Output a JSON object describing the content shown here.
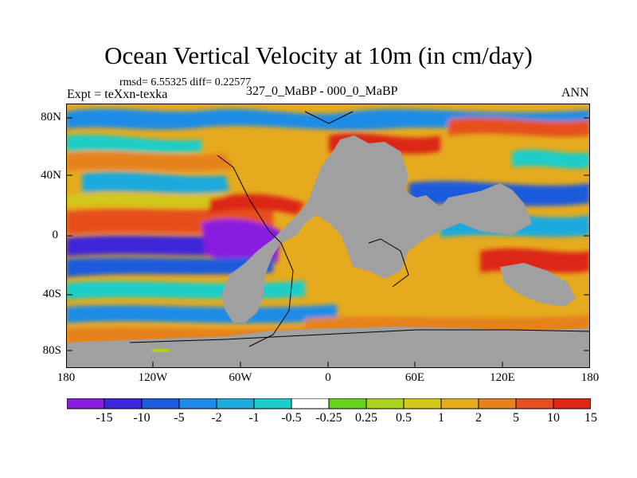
{
  "title": "Ocean Vertical Velocity at 10m (in cm/day)",
  "stats": "rmsd= 6.55325 diff= 0.22577",
  "experiment": "Expt = teXxn-texka",
  "period": "327_0_MaBP - 000_0_MaBP",
  "season": "ANN",
  "y_ticks": [
    "80N",
    "40N",
    "0",
    "40S",
    "80S"
  ],
  "x_ticks": [
    "180",
    "120W",
    "60W",
    "0",
    "60E",
    "120E",
    "180"
  ],
  "colorbar": {
    "colors": [
      "#8a1ee0",
      "#3c28d8",
      "#1e5adc",
      "#1e8ce6",
      "#1eaadc",
      "#1ecdc8",
      "#ffffff",
      "#64d21e",
      "#aad21e",
      "#d2c81e",
      "#e6aa1e",
      "#e6821e",
      "#e6501e",
      "#dc2814"
    ],
    "labels": [
      "-15",
      "-10",
      "-5",
      "-2",
      "-1",
      "-0.5",
      "-0.25",
      "0.25",
      "0.5",
      "1",
      "2",
      "5",
      "10",
      "15"
    ]
  },
  "colors": {
    "land": "#a0a0a0"
  }
}
